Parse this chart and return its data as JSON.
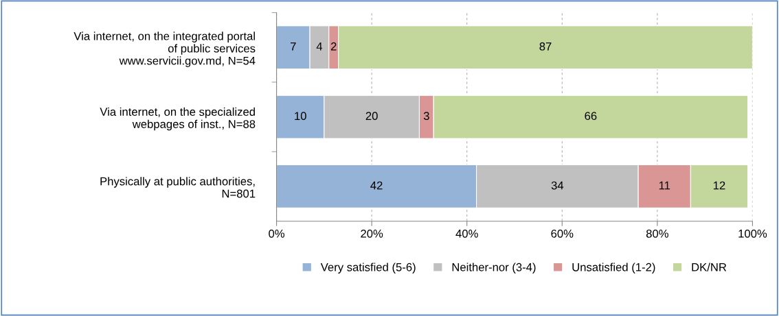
{
  "chart_data": {
    "type": "bar",
    "orientation": "horizontal",
    "stacked": true,
    "categories": [
      "Via internet, on the integrated portal\nof public services\nwww.servicii.gov.md, N=54",
      "Via internet, on the specialized\nwebpages of inst., N=88",
      "Physically at public authorities,\nN=801"
    ],
    "series": [
      {
        "name": "Very satisfied (5-6)",
        "color": "#95b3d7",
        "values": [
          7,
          10,
          42
        ]
      },
      {
        "name": "Neither-nor (3-4)",
        "color": "#c0c0c0",
        "values": [
          4,
          20,
          34
        ]
      },
      {
        "name": "Unsatisfied (1-2)",
        "color": "#d99694",
        "values": [
          2,
          3,
          11
        ]
      },
      {
        "name": "DK/NR",
        "color": "#c3d69b",
        "values": [
          87,
          66,
          12
        ]
      }
    ],
    "xlim": [
      0,
      100
    ],
    "xticks": [
      {
        "value": 0,
        "label": "0%"
      },
      {
        "value": 20,
        "label": "20%"
      },
      {
        "value": 40,
        "label": "40%"
      },
      {
        "value": 60,
        "label": "60%"
      },
      {
        "value": 80,
        "label": "80%"
      },
      {
        "value": 100,
        "label": "100%"
      }
    ],
    "grid": "x",
    "legend": "bottom",
    "data_labels": true
  }
}
